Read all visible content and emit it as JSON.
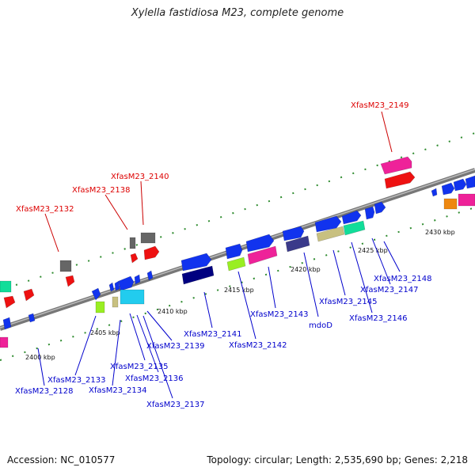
{
  "title": "Xylella fastidiosa M23, complete genome",
  "footer": {
    "accession": "Accession: NC_010577",
    "summary": "Topology: circular; Length: 2,535,690 bp; Genes: 2,218"
  },
  "colors": {
    "backbone": "#888888",
    "guide_dots": "#2e8b2e",
    "label_highlight": "#dd0000",
    "label_normal": "#0000cc",
    "leader_highlight": "#cc0000",
    "leader_normal": "#0000cc"
  },
  "ticks": [
    "2400 kbp",
    "2405 kbp",
    "2410 kbp",
    "2415 kbp",
    "2420 kbp",
    "2425 kbp",
    "2430 kbp"
  ],
  "gene_labels": [
    {
      "name": "XfasM23_2149",
      "highlight": true
    },
    {
      "name": "XfasM23_2140",
      "highlight": true
    },
    {
      "name": "XfasM23_2138",
      "highlight": true
    },
    {
      "name": "XfasM23_2132",
      "highlight": true
    },
    {
      "name": "XfasM23_2148",
      "highlight": false
    },
    {
      "name": "XfasM23_2147",
      "highlight": false
    },
    {
      "name": "XfasM23_2145",
      "highlight": false
    },
    {
      "name": "XfasM23_2146",
      "highlight": false
    },
    {
      "name": "mdoD",
      "highlight": false
    },
    {
      "name": "XfasM23_2143",
      "highlight": false
    },
    {
      "name": "XfasM23_2142",
      "highlight": false
    },
    {
      "name": "XfasM23_2141",
      "highlight": false
    },
    {
      "name": "XfasM23_2139",
      "highlight": false
    },
    {
      "name": "XfasM23_2135",
      "highlight": false
    },
    {
      "name": "XfasM23_2136",
      "highlight": false
    },
    {
      "name": "XfasM23_2137",
      "highlight": false
    },
    {
      "name": "XfasM23_2133",
      "highlight": false
    },
    {
      "name": "XfasM23_2134",
      "highlight": false
    },
    {
      "name": "XfasM23_2128",
      "highlight": false
    }
  ],
  "gene_blocks": [
    {
      "gene": "XfasM23_2149a",
      "color": "#ee2299"
    },
    {
      "gene": "XfasM23_2149b",
      "color": "#ee1111"
    },
    {
      "gene": "XfasM23_2140a",
      "color": "#666666"
    },
    {
      "gene": "XfasM23_2140b",
      "color": "#ee1111"
    },
    {
      "gene": "XfasM23_2138",
      "color": "#666666"
    },
    {
      "gene": "XfasM23_2138b",
      "color": "#ee1111"
    },
    {
      "gene": "XfasM23_2132a",
      "color": "#666666"
    },
    {
      "gene": "XfasM23_2132b",
      "color": "#ee1111"
    },
    {
      "gene": "left_teal",
      "color": "#11dd99"
    },
    {
      "gene": "left_red1",
      "color": "#ee1111"
    },
    {
      "gene": "left_red2",
      "color": "#ee1111"
    },
    {
      "gene": "left_blue_small",
      "color": "#1133ee"
    },
    {
      "gene": "left_magenta",
      "color": "#ee2299"
    },
    {
      "gene": "blue_top_a",
      "color": "#1133ee"
    },
    {
      "gene": "navy_bottom_a",
      "color": "#000080"
    },
    {
      "gene": "blue_top_b",
      "color": "#1133ee"
    },
    {
      "gene": "lime_bottom_b",
      "color": "#99ee22"
    },
    {
      "gene": "blue_top_c",
      "color": "#1133ee"
    },
    {
      "gene": "magenta_bottom_c",
      "color": "#ee2299"
    },
    {
      "gene": "blue_top_d",
      "color": "#1133ee"
    },
    {
      "gene": "slate_bottom_d",
      "color": "#3a3a8a"
    },
    {
      "gene": "blue_top_e",
      "color": "#1133ee"
    },
    {
      "gene": "khaki_bottom_e",
      "color": "#c8c080"
    },
    {
      "gene": "blue_top_f",
      "color": "#1133ee"
    },
    {
      "gene": "teal_f",
      "color": "#11dd99"
    },
    {
      "gene": "blue_top_g",
      "color": "#1133ee"
    },
    {
      "gene": "blue_top_h",
      "color": "#1133ee"
    },
    {
      "gene": "lime_mid_i",
      "color": "#99ee22"
    },
    {
      "gene": "khaki_mid_i",
      "color": "#c8c080"
    },
    {
      "gene": "blue_mid_i",
      "color": "#1133ee"
    },
    {
      "gene": "cyan_mid_i",
      "color": "#22ccee"
    },
    {
      "gene": "blue_far_right",
      "color": "#1133ee"
    },
    {
      "gene": "orange_far_right",
      "color": "#ee8811"
    },
    {
      "gene": "magenta_far_right",
      "color": "#ee2299"
    }
  ]
}
